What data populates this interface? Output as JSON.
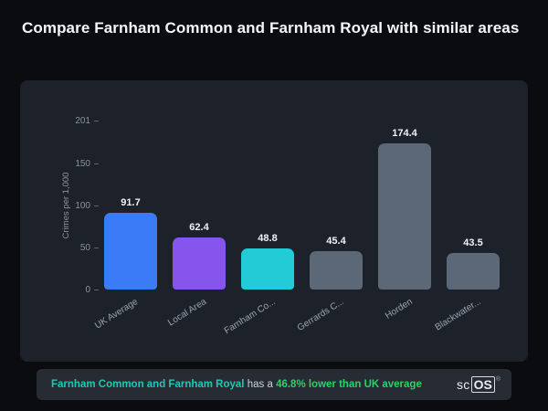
{
  "page": {
    "title": "Compare Farnham Common and Farnham Royal with similar areas"
  },
  "chart_data": {
    "type": "bar",
    "title": "",
    "ylabel": "Crimes per 1,000",
    "ylim": [
      0,
      201
    ],
    "yticks": [
      0,
      50,
      100,
      150,
      201
    ],
    "grid": false,
    "legend": "none",
    "categories": [
      "UK Average",
      "Local Area",
      "Farnham Co...",
      "Gerrards C...",
      "Horden",
      "Blackwater..."
    ],
    "values": [
      91.7,
      62.4,
      48.8,
      45.4,
      174.4,
      43.5
    ],
    "bar_colors": [
      "#3b7bf5",
      "#8655ee",
      "#22ccd6",
      "#5b6878",
      "#5b6878",
      "#5b6878"
    ]
  },
  "footer": {
    "highlight": "Farnham Common and Farnham Royal",
    "middle": "has a",
    "stat": "46.8% lower than UK average",
    "highlight_color": "#1fc8b4",
    "stat_color": "#2fd06b"
  },
  "logo": {
    "sc": "sc",
    "os": "OS",
    "registered": "®"
  }
}
